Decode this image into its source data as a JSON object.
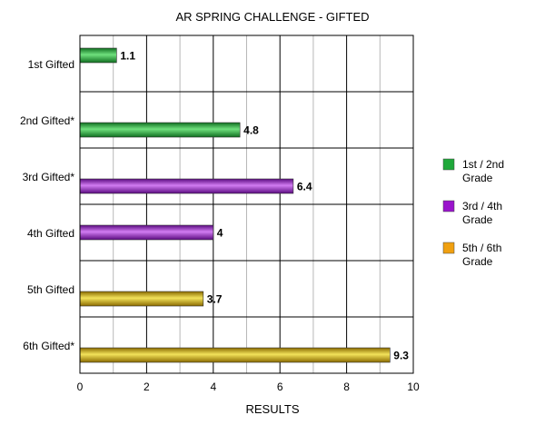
{
  "chart_data": {
    "type": "bar",
    "orientation": "horizontal",
    "title": "AR SPRING CHALLENGE - GIFTED",
    "xlabel": "RESULTS",
    "ylabel": "",
    "xlim": [
      0,
      10
    ],
    "xticks": [
      0,
      2,
      4,
      6,
      8,
      10
    ],
    "categories": [
      "1st Gifted",
      "2nd Gifted*",
      "3rd Gifted*",
      "4th Gifted",
      "5th Gifted",
      "6th Gifted*"
    ],
    "values": [
      1.1,
      4.8,
      6.4,
      4,
      3.7,
      9.3
    ],
    "value_labels": [
      "1.1",
      "4.8",
      "6.4",
      "4",
      "3.7",
      "9.3"
    ],
    "bar_groups": [
      0,
      0,
      1,
      1,
      2,
      2
    ],
    "bar_position_in_band": [
      "upper",
      "lower",
      "lower",
      "middle",
      "lower",
      "lower"
    ],
    "legend": {
      "placement": "right",
      "entries": [
        {
          "name": "1st / 2nd Grade",
          "lines": [
            "1st / 2nd",
            "Grade"
          ],
          "color": "#1fa83a"
        },
        {
          "name": "3rd / 4th Grade",
          "lines": [
            "3rd / 4th",
            "Grade"
          ],
          "color": "#9a14cc"
        },
        {
          "name": "5th / 6th Grade",
          "lines": [
            "5th / 6th",
            "Grade"
          ],
          "color": "#f0a010"
        }
      ]
    },
    "grid": {
      "vertical_major": true,
      "vertical_minor": true,
      "horizontal_band_lines": true
    },
    "colors": {
      "green": [
        "#0f6e1f",
        "#6fe07d",
        "#0f6e1f"
      ],
      "purple": [
        "#5a0a80",
        "#d27cf2",
        "#5a0a80"
      ],
      "gold": [
        "#8a6a00",
        "#f2e25a",
        "#8a6a00"
      ]
    }
  }
}
